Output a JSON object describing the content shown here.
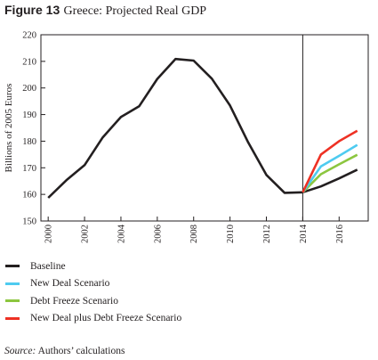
{
  "figure": {
    "number_label": "Figure 13",
    "title": "Greece: Projected Real GDP"
  },
  "source": {
    "label": "Source:",
    "text": " Authors’ calculations"
  },
  "chart_data": {
    "type": "line",
    "title": "Greece: Projected Real GDP",
    "xlabel": "",
    "ylabel": "Billions of 2005 Euros",
    "xlim": [
      1999.6,
      2017.6
    ],
    "ylim": [
      150,
      220
    ],
    "yticks": [
      150,
      160,
      170,
      180,
      190,
      200,
      210,
      220
    ],
    "xticks": [
      2000,
      2002,
      2004,
      2006,
      2008,
      2010,
      2012,
      2014,
      2016
    ],
    "vertical_line_at": 2014,
    "grid": false,
    "legend_position": "below",
    "series": [
      {
        "name": "Baseline",
        "color": "#231f20",
        "x": [
          2000,
          2001,
          2002,
          2003,
          2004,
          2005,
          2006,
          2007,
          2008,
          2009,
          2010,
          2011,
          2012,
          2013,
          2014,
          2015,
          2016,
          2017
        ],
        "values": [
          158.7,
          165.3,
          171.0,
          181.4,
          189.1,
          193.1,
          203.4,
          210.9,
          210.3,
          203.5,
          193.4,
          179.5,
          167.3,
          160.6,
          160.8,
          163.0,
          166.0,
          169.3
        ]
      },
      {
        "name": "New Deal Scenario",
        "color": "#4ecbf0",
        "x": [
          2014,
          2015,
          2016,
          2017
        ],
        "values": [
          160.8,
          170.5,
          174.5,
          178.6
        ]
      },
      {
        "name": "Debt Freeze Scenario",
        "color": "#8cc63f",
        "x": [
          2014,
          2015,
          2016,
          2017
        ],
        "values": [
          160.8,
          167.6,
          171.3,
          174.9
        ]
      },
      {
        "name": "New Deal plus Debt Freeze Scenario",
        "color": "#ee3124",
        "x": [
          2014,
          2015,
          2016,
          2017
        ],
        "values": [
          160.8,
          175.0,
          180.0,
          183.9
        ]
      }
    ]
  }
}
